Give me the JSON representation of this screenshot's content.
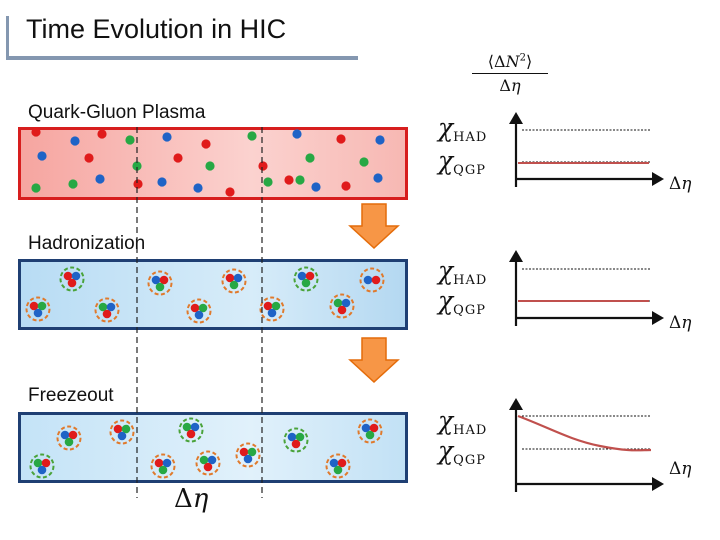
{
  "title": "Time Evolution in HIC",
  "stages": [
    {
      "label": "Quark-Gluon Plasma"
    },
    {
      "label": "Hadronization"
    },
    {
      "label": "Freezeout"
    }
  ],
  "y_axis_label": {
    "numerator": "⟨ΔN²⟩",
    "numerator_delta": "⟨Δ",
    "numerator_var": "N",
    "numerator_exp": "2",
    "numerator_close": "⟩",
    "denominator_delta": "Δ",
    "denominator_var": "η"
  },
  "x_axis_label": {
    "delta": "Δ",
    "var": "η"
  },
  "chi_symbol": "χ",
  "chi_had_sub": "HAD",
  "chi_qgp_sub": "QGP",
  "bottom_label": {
    "delta": "Δ",
    "var": "η"
  },
  "colors": {
    "quark_red": "#e01b1b",
    "quark_blue": "#1f63c6",
    "quark_green": "#27a844",
    "ring_orange": "#e07a2c",
    "ring_green": "#4aa33a",
    "curve": "#c0504d",
    "arrow_fill": "#f79646",
    "arrow_stroke": "#e46c0a"
  }
}
